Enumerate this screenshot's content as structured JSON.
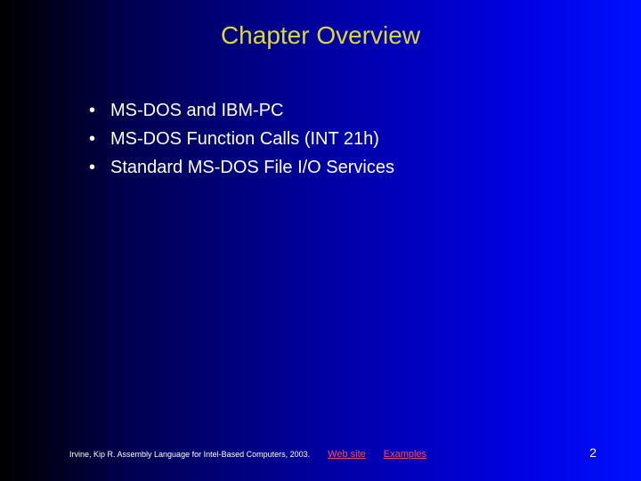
{
  "title": "Chapter Overview",
  "title_color": "#d9d93a",
  "title_fontsize": 28,
  "background_gradient": [
    "#000000",
    "#0010ff"
  ],
  "bullets": {
    "marker": "•",
    "items": [
      "MS-DOS and IBM-PC",
      "MS-DOS Function Calls (INT 21h)",
      "Standard MS-DOS File I/O Services"
    ],
    "text_color": "#ffffff",
    "fontsize": 20
  },
  "footer": {
    "citation": "Irvine, Kip R. Assembly Language for Intel-Based Computers, 2003.",
    "links": {
      "website": "Web site",
      "examples": "Examples"
    },
    "link_color": "#ff4d4d",
    "page_number": "2"
  }
}
